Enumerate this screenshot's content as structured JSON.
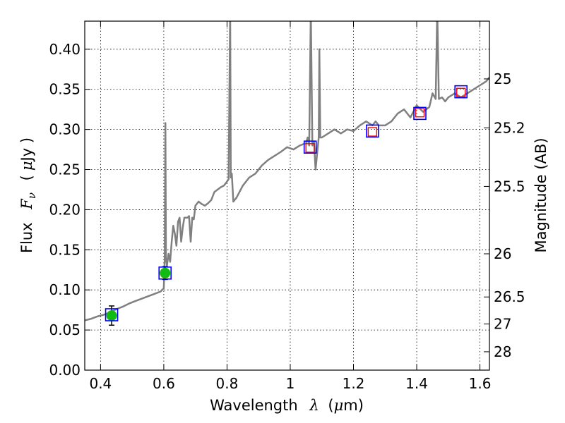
{
  "chart_data": {
    "type": "line",
    "xlabel_text": "Wavelength",
    "xlabel_symbol": "λ",
    "xlabel_unit_open": "(",
    "xlabel_unit_mu": "μ",
    "xlabel_unit_rest": "m)",
    "ylabel_text": "Flux",
    "ylabel_symbol": "F",
    "ylabel_sub": "ν",
    "ylabel_unit_open": "(",
    "ylabel_unit_mu": "μ",
    "ylabel_unit_rest": "Jy )",
    "y2label": "Magnitude (AB)",
    "xlim": [
      0.35,
      1.63
    ],
    "ylim": [
      0.0,
      0.435
    ],
    "grid": true,
    "x_ticks": [
      0.4,
      0.6,
      0.8,
      1.0,
      1.2,
      1.4,
      1.6
    ],
    "x_tick_labels": [
      "0.4",
      "0.6",
      "0.8",
      "1",
      "1.2",
      "1.4",
      "1.6"
    ],
    "y_ticks": [
      0.0,
      0.05,
      0.1,
      0.15,
      0.2,
      0.25,
      0.3,
      0.35,
      0.4
    ],
    "y_tick_labels": [
      "0.00",
      "0.05",
      "0.10",
      "0.15",
      "0.20",
      "0.25",
      "0.30",
      "0.35",
      "0.40"
    ],
    "y2_ticks": [
      {
        "label": "25",
        "flux": 0.363
      },
      {
        "label": "25.2",
        "flux": 0.302
      },
      {
        "label": "25.5",
        "flux": 0.229
      },
      {
        "label": "26",
        "flux": 0.145
      },
      {
        "label": "26.5",
        "flux": 0.0912
      },
      {
        "label": "27",
        "flux": 0.0575
      },
      {
        "label": "28",
        "flux": 0.0229
      }
    ],
    "series": [
      {
        "kind": "model_spectrum",
        "color": "#808080",
        "x": [
          0.35,
          0.37,
          0.39,
          0.41,
          0.43,
          0.45,
          0.47,
          0.49,
          0.51,
          0.53,
          0.55,
          0.57,
          0.59,
          0.6,
          0.603,
          0.605,
          0.607,
          0.61,
          0.615,
          0.62,
          0.625,
          0.63,
          0.635,
          0.64,
          0.645,
          0.65,
          0.655,
          0.66,
          0.665,
          0.67,
          0.675,
          0.68,
          0.685,
          0.69,
          0.695,
          0.7,
          0.71,
          0.72,
          0.73,
          0.74,
          0.75,
          0.76,
          0.77,
          0.78,
          0.79,
          0.8,
          0.805,
          0.81,
          0.812,
          0.815,
          0.82,
          0.83,
          0.85,
          0.87,
          0.89,
          0.91,
          0.93,
          0.95,
          0.97,
          0.99,
          1.01,
          1.03,
          1.05,
          1.055,
          1.06,
          1.065,
          1.07,
          1.075,
          1.08,
          1.09,
          1.092,
          1.095,
          1.1,
          1.12,
          1.14,
          1.16,
          1.18,
          1.2,
          1.22,
          1.24,
          1.26,
          1.27,
          1.28,
          1.3,
          1.32,
          1.34,
          1.36,
          1.38,
          1.4,
          1.42,
          1.44,
          1.45,
          1.46,
          1.465,
          1.47,
          1.48,
          1.49,
          1.5,
          1.52,
          1.54,
          1.56,
          1.58,
          1.6,
          1.62,
          1.63
        ],
        "y": [
          0.062,
          0.064,
          0.067,
          0.069,
          0.072,
          0.076,
          0.079,
          0.083,
          0.086,
          0.089,
          0.092,
          0.095,
          0.098,
          0.102,
          0.14,
          0.308,
          0.14,
          0.13,
          0.145,
          0.135,
          0.16,
          0.18,
          0.17,
          0.155,
          0.185,
          0.19,
          0.16,
          0.178,
          0.19,
          0.19,
          0.19,
          0.192,
          0.16,
          0.19,
          0.188,
          0.205,
          0.21,
          0.207,
          0.205,
          0.208,
          0.212,
          0.222,
          0.225,
          0.228,
          0.23,
          0.235,
          0.238,
          0.45,
          0.24,
          0.245,
          0.21,
          0.215,
          0.23,
          0.24,
          0.245,
          0.255,
          0.262,
          0.267,
          0.272,
          0.278,
          0.275,
          0.28,
          0.283,
          0.29,
          0.28,
          0.45,
          0.28,
          0.285,
          0.25,
          0.29,
          0.4,
          0.29,
          0.29,
          0.295,
          0.3,
          0.295,
          0.3,
          0.298,
          0.305,
          0.31,
          0.305,
          0.31,
          0.305,
          0.305,
          0.31,
          0.32,
          0.325,
          0.315,
          0.33,
          0.322,
          0.328,
          0.345,
          0.338,
          0.45,
          0.338,
          0.34,
          0.335,
          0.34,
          0.345,
          0.34,
          0.345,
          0.35,
          0.355,
          0.36,
          0.365
        ]
      },
      {
        "kind": "observed_points",
        "color": "#11bb11",
        "x": [
          0.435,
          0.604
        ],
        "y": [
          0.068,
          0.121
        ],
        "yerr": [
          0.012,
          0.008
        ]
      },
      {
        "kind": "synthetic_blue_squares",
        "color": "#0000ff",
        "x": [
          0.435,
          0.604,
          1.063,
          1.26,
          1.41,
          1.54
        ],
        "y": [
          0.069,
          0.121,
          0.278,
          0.298,
          0.32,
          0.347
        ]
      },
      {
        "kind": "synthetic_red_squares",
        "color": "#ff0000",
        "x": [
          1.063,
          1.26,
          1.41,
          1.54
        ],
        "y": [
          0.277,
          0.297,
          0.321,
          0.346
        ]
      }
    ]
  }
}
